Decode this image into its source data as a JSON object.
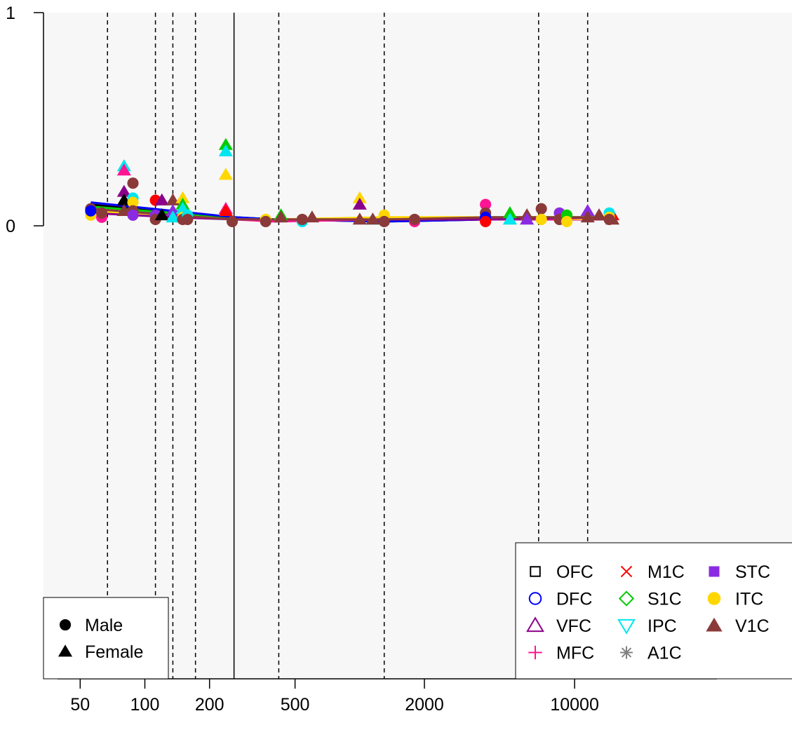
{
  "chart_data": {
    "type": "scatter",
    "x_scale": "log",
    "xlim": [
      48,
      16000
    ],
    "ylim": [
      -1,
      1
    ],
    "x_ticks": [
      50,
      100,
      200,
      500,
      2000,
      10000
    ],
    "x_tick_labels": [
      "50",
      "100",
      "200",
      "500",
      "2000",
      "10000"
    ],
    "y_ticks": [
      0,
      1
    ],
    "y_tick_labels": [
      "0",
      "1"
    ],
    "reference_lines": {
      "dashed_x": [
        67,
        112,
        135,
        172,
        420,
        1300,
        6800,
        11500
      ],
      "solid_x": [
        260
      ]
    },
    "legend_regions": {
      "position": "bottom-right",
      "entries": [
        {
          "name": "OFC",
          "color": "#000000",
          "marker": "square-open"
        },
        {
          "name": "DFC",
          "color": "#0000ff",
          "marker": "circle-open"
        },
        {
          "name": "VFC",
          "color": "#8b008b",
          "marker": "triangle-open"
        },
        {
          "name": "MFC",
          "color": "#ff1493",
          "marker": "plus"
        },
        {
          "name": "M1C",
          "color": "#ff0000",
          "marker": "cross"
        },
        {
          "name": "S1C",
          "color": "#00cc00",
          "marker": "diamond-open"
        },
        {
          "name": "IPC",
          "color": "#00e5ee",
          "marker": "triangle-down-open"
        },
        {
          "name": "A1C",
          "color": "#808080",
          "marker": "asterisk"
        },
        {
          "name": "STC",
          "color": "#8a2be2",
          "marker": "square-filled"
        },
        {
          "name": "ITC",
          "color": "#ffd700",
          "marker": "circle-filled"
        },
        {
          "name": "V1C",
          "color": "#8b3a3a",
          "marker": "triangle-filled"
        }
      ]
    },
    "legend_sex": {
      "position": "bottom-left",
      "entries": [
        {
          "name": "Male",
          "marker": "circle-filled"
        },
        {
          "name": "Female",
          "marker": "triangle-filled"
        }
      ]
    },
    "points": [
      {
        "x": 56,
        "y": 0.08,
        "s": "M",
        "r": "V1C"
      },
      {
        "x": 56,
        "y": 0.05,
        "s": "M",
        "r": "ITC"
      },
      {
        "x": 56,
        "y": 0.07,
        "s": "M",
        "r": "DFC"
      },
      {
        "x": 63,
        "y": 0.04,
        "s": "M",
        "r": "MFC"
      },
      {
        "x": 63,
        "y": 0.06,
        "s": "M",
        "r": "V1C"
      },
      {
        "x": 80,
        "y": 0.28,
        "s": "F",
        "r": "IPC"
      },
      {
        "x": 80,
        "y": 0.26,
        "s": "F",
        "r": "MFC"
      },
      {
        "x": 80,
        "y": 0.16,
        "s": "F",
        "r": "VFC"
      },
      {
        "x": 80,
        "y": 0.12,
        "s": "F",
        "r": "OFC"
      },
      {
        "x": 80,
        "y": 0.07,
        "s": "F",
        "r": "V1C"
      },
      {
        "x": 88,
        "y": 0.2,
        "s": "M",
        "r": "V1C"
      },
      {
        "x": 88,
        "y": 0.13,
        "s": "M",
        "r": "IPC"
      },
      {
        "x": 88,
        "y": 0.11,
        "s": "M",
        "r": "ITC"
      },
      {
        "x": 88,
        "y": 0.07,
        "s": "M",
        "r": "V1C"
      },
      {
        "x": 88,
        "y": 0.05,
        "s": "M",
        "r": "STC"
      },
      {
        "x": 112,
        "y": 0.12,
        "s": "M",
        "r": "M1C"
      },
      {
        "x": 112,
        "y": 0.05,
        "s": "M",
        "r": "STC"
      },
      {
        "x": 112,
        "y": 0.03,
        "s": "M",
        "r": "V1C"
      },
      {
        "x": 120,
        "y": 0.12,
        "s": "F",
        "r": "VFC"
      },
      {
        "x": 120,
        "y": 0.05,
        "s": "F",
        "r": "OFC"
      },
      {
        "x": 135,
        "y": 0.12,
        "s": "F",
        "r": "V1C"
      },
      {
        "x": 135,
        "y": 0.07,
        "s": "F",
        "r": "STC"
      },
      {
        "x": 135,
        "y": 0.04,
        "s": "F",
        "r": "IPC"
      },
      {
        "x": 150,
        "y": 0.13,
        "s": "F",
        "r": "ITC"
      },
      {
        "x": 150,
        "y": 0.1,
        "s": "F",
        "r": "S1C"
      },
      {
        "x": 150,
        "y": 0.08,
        "s": "F",
        "r": "IPC"
      },
      {
        "x": 150,
        "y": 0.04,
        "s": "M",
        "r": "ITC"
      },
      {
        "x": 150,
        "y": 0.03,
        "s": "M",
        "r": "V1C"
      },
      {
        "x": 158,
        "y": 0.05,
        "s": "M",
        "r": "IPC"
      },
      {
        "x": 158,
        "y": 0.03,
        "s": "M",
        "r": "V1C"
      },
      {
        "x": 238,
        "y": 0.38,
        "s": "F",
        "r": "S1C"
      },
      {
        "x": 238,
        "y": 0.35,
        "s": "F",
        "r": "IPC"
      },
      {
        "x": 238,
        "y": 0.24,
        "s": "F",
        "r": "ITC"
      },
      {
        "x": 238,
        "y": 0.08,
        "s": "F",
        "r": "MFC"
      },
      {
        "x": 238,
        "y": 0.07,
        "s": "F",
        "r": "M1C"
      },
      {
        "x": 255,
        "y": 0.02,
        "s": "M",
        "r": "V1C"
      },
      {
        "x": 365,
        "y": 0.03,
        "s": "M",
        "r": "ITC"
      },
      {
        "x": 365,
        "y": 0.02,
        "s": "M",
        "r": "V1C"
      },
      {
        "x": 430,
        "y": 0.05,
        "s": "F",
        "r": "S1C"
      },
      {
        "x": 430,
        "y": 0.04,
        "s": "F",
        "r": "V1C"
      },
      {
        "x": 540,
        "y": 0.02,
        "s": "M",
        "r": "IPC"
      },
      {
        "x": 540,
        "y": 0.03,
        "s": "M",
        "r": "V1C"
      },
      {
        "x": 600,
        "y": 0.04,
        "s": "F",
        "r": "V1C"
      },
      {
        "x": 1000,
        "y": 0.13,
        "s": "F",
        "r": "ITC"
      },
      {
        "x": 1000,
        "y": 0.1,
        "s": "F",
        "r": "VFC"
      },
      {
        "x": 1000,
        "y": 0.03,
        "s": "F",
        "r": "V1C"
      },
      {
        "x": 1150,
        "y": 0.03,
        "s": "F",
        "r": "IPC"
      },
      {
        "x": 1150,
        "y": 0.03,
        "s": "F",
        "r": "V1C"
      },
      {
        "x": 1300,
        "y": 0.05,
        "s": "M",
        "r": "ITC"
      },
      {
        "x": 1300,
        "y": 0.02,
        "s": "M",
        "r": "V1C"
      },
      {
        "x": 1800,
        "y": 0.02,
        "s": "M",
        "r": "MFC"
      },
      {
        "x": 1800,
        "y": 0.03,
        "s": "M",
        "r": "V1C"
      },
      {
        "x": 3850,
        "y": 0.1,
        "s": "M",
        "r": "MFC"
      },
      {
        "x": 3850,
        "y": 0.06,
        "s": "M",
        "r": "V1C"
      },
      {
        "x": 3850,
        "y": 0.04,
        "s": "M",
        "r": "DFC"
      },
      {
        "x": 3850,
        "y": 0.02,
        "s": "M",
        "r": "M1C"
      },
      {
        "x": 5000,
        "y": 0.06,
        "s": "F",
        "r": "S1C"
      },
      {
        "x": 5000,
        "y": 0.03,
        "s": "F",
        "r": "IPC"
      },
      {
        "x": 6000,
        "y": 0.05,
        "s": "F",
        "r": "V1C"
      },
      {
        "x": 6000,
        "y": 0.03,
        "s": "F",
        "r": "STC"
      },
      {
        "x": 7000,
        "y": 0.08,
        "s": "M",
        "r": "V1C"
      },
      {
        "x": 7000,
        "y": 0.03,
        "s": "M",
        "r": "ITC"
      },
      {
        "x": 8500,
        "y": 0.06,
        "s": "M",
        "r": "STC"
      },
      {
        "x": 8500,
        "y": 0.03,
        "s": "M",
        "r": "V1C"
      },
      {
        "x": 9200,
        "y": 0.05,
        "s": "M",
        "r": "S1C"
      },
      {
        "x": 9200,
        "y": 0.02,
        "s": "M",
        "r": "ITC"
      },
      {
        "x": 11500,
        "y": 0.07,
        "s": "F",
        "r": "STC"
      },
      {
        "x": 11500,
        "y": 0.04,
        "s": "F",
        "r": "V1C"
      },
      {
        "x": 15000,
        "y": 0.05,
        "s": "F",
        "r": "M1C"
      },
      {
        "x": 15000,
        "y": 0.03,
        "s": "F",
        "r": "V1C"
      },
      {
        "x": 14500,
        "y": 0.06,
        "s": "M",
        "r": "IPC"
      },
      {
        "x": 14500,
        "y": 0.04,
        "s": "M",
        "r": "ITC"
      },
      {
        "x": 14500,
        "y": 0.03,
        "s": "M",
        "r": "V1C"
      },
      {
        "x": 13000,
        "y": 0.05,
        "s": "F",
        "r": "V1C"
      }
    ],
    "trend_lines": [
      {
        "r": "OFC",
        "x": [
          56,
          135,
          260,
          400,
          1300,
          4000,
          15000
        ],
        "y": [
          0.1,
          0.06,
          0.04,
          0.03,
          0.02,
          0.03,
          0.03
        ]
      },
      {
        "r": "DFC",
        "x": [
          56,
          135,
          260,
          400,
          1300,
          4000,
          15000
        ],
        "y": [
          0.11,
          0.07,
          0.04,
          0.03,
          0.02,
          0.03,
          0.03
        ]
      },
      {
        "r": "MFC",
        "x": [
          56,
          135,
          260,
          400,
          1300,
          4000,
          15000
        ],
        "y": [
          0.08,
          0.05,
          0.03,
          0.02,
          0.03,
          0.03,
          0.03
        ]
      },
      {
        "r": "S1C",
        "x": [
          56,
          135,
          260,
          400,
          1300,
          4000,
          15000
        ],
        "y": [
          0.09,
          0.06,
          0.03,
          0.03,
          0.03,
          0.04,
          0.04
        ]
      },
      {
        "r": "ITC",
        "x": [
          56,
          135,
          260,
          400,
          1300,
          4000,
          15000
        ],
        "y": [
          0.07,
          0.05,
          0.03,
          0.03,
          0.04,
          0.04,
          0.03
        ]
      },
      {
        "r": "VFC",
        "x": [
          56,
          135,
          260,
          400,
          1300,
          4000,
          15000
        ],
        "y": [
          0.06,
          0.04,
          0.03,
          0.03,
          0.03,
          0.03,
          0.04
        ]
      },
      {
        "r": "V1C",
        "x": [
          56,
          135,
          260,
          400,
          1300,
          4000,
          15000
        ],
        "y": [
          0.08,
          0.05,
          0.03,
          0.03,
          0.03,
          0.04,
          0.04
        ]
      }
    ]
  }
}
